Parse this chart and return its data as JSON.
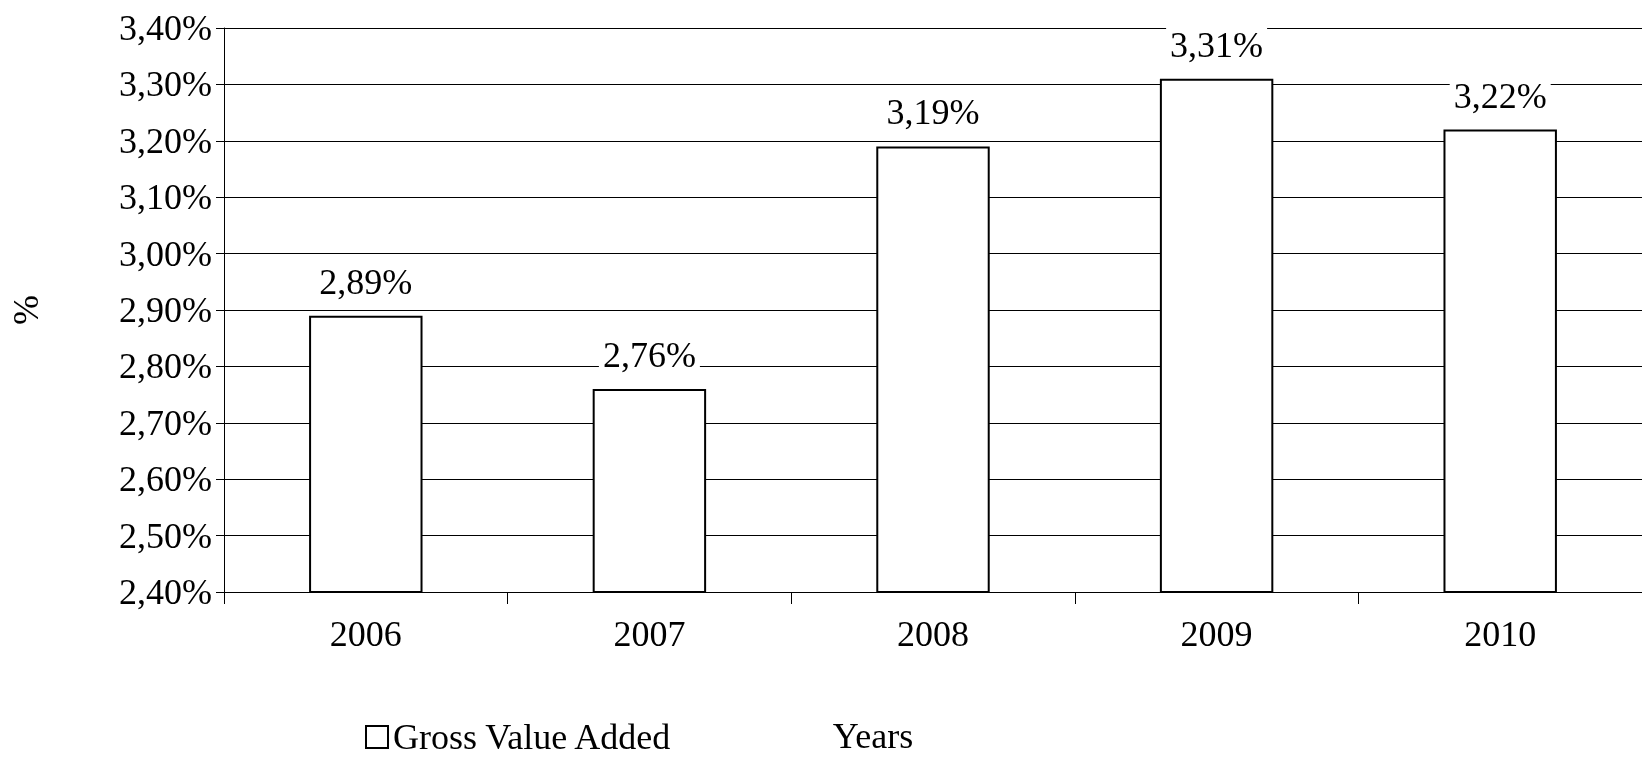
{
  "chart_data": {
    "type": "bar",
    "xlabel": "Years",
    "ylabel": "%",
    "categories": [
      "2006",
      "2007",
      "2008",
      "2009",
      "2010"
    ],
    "series": [
      {
        "name": "Gross Value Added",
        "color": "#ffffff",
        "values": [
          2.89,
          2.76,
          3.19,
          3.31,
          3.22
        ],
        "value_labels": [
          "2,89%",
          "2,76%",
          "3,19%",
          "3,31%",
          "3,22%"
        ]
      }
    ],
    "ylim": [
      2.4,
      3.4
    ],
    "yticks": [
      {
        "value": 2.4,
        "label": "2,40%"
      },
      {
        "value": 2.5,
        "label": "2,50%"
      },
      {
        "value": 2.6,
        "label": "2,60%"
      },
      {
        "value": 2.7,
        "label": "2,70%"
      },
      {
        "value": 2.8,
        "label": "2,80%"
      },
      {
        "value": 2.9,
        "label": "2,90%"
      },
      {
        "value": 3.0,
        "label": "3,00%"
      },
      {
        "value": 3.1,
        "label": "3,10%"
      },
      {
        "value": 3.2,
        "label": "3,20%"
      },
      {
        "value": 3.3,
        "label": "3,30%"
      },
      {
        "value": 3.4,
        "label": "3,40%"
      }
    ],
    "grid": "y",
    "legend": "bottom"
  }
}
